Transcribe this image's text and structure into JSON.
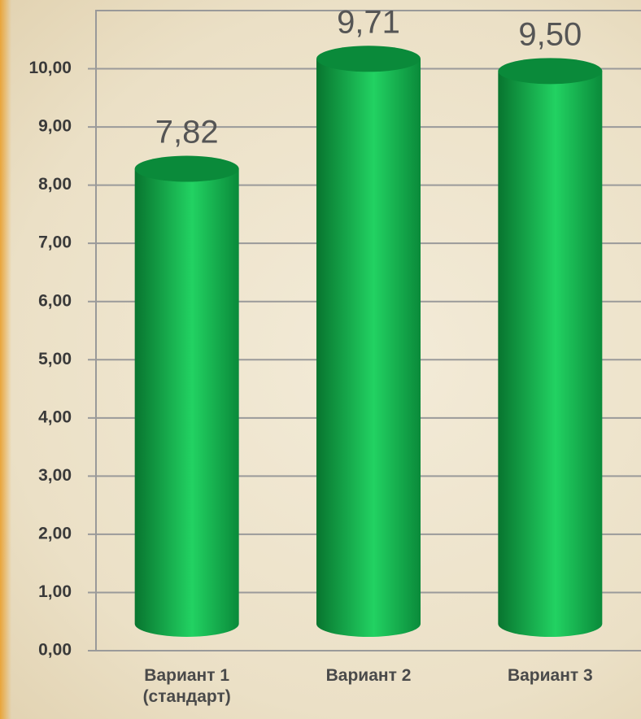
{
  "chart_data": {
    "type": "bar",
    "categories": [
      "Вариант 1 (стандарт)",
      "Вариант 2",
      "Вариант 3"
    ],
    "values": [
      7.82,
      9.71,
      9.5
    ],
    "value_labels": [
      "7,82",
      "9,71",
      "9,50"
    ],
    "color": "#0fb04a",
    "ylim": [
      0,
      11
    ],
    "yticks": [
      {
        "value": 0,
        "label": "0,00"
      },
      {
        "value": 1,
        "label": "1,00"
      },
      {
        "value": 2,
        "label": "2,00"
      },
      {
        "value": 3,
        "label": "3,00"
      },
      {
        "value": 4,
        "label": "4,00"
      },
      {
        "value": 5,
        "label": "5,00"
      },
      {
        "value": 6,
        "label": "6,00"
      },
      {
        "value": 7,
        "label": "7,00"
      },
      {
        "value": 8,
        "label": "8,00"
      },
      {
        "value": 9,
        "label": "9,00"
      },
      {
        "value": 10,
        "label": "10,00"
      }
    ],
    "grid": true
  }
}
